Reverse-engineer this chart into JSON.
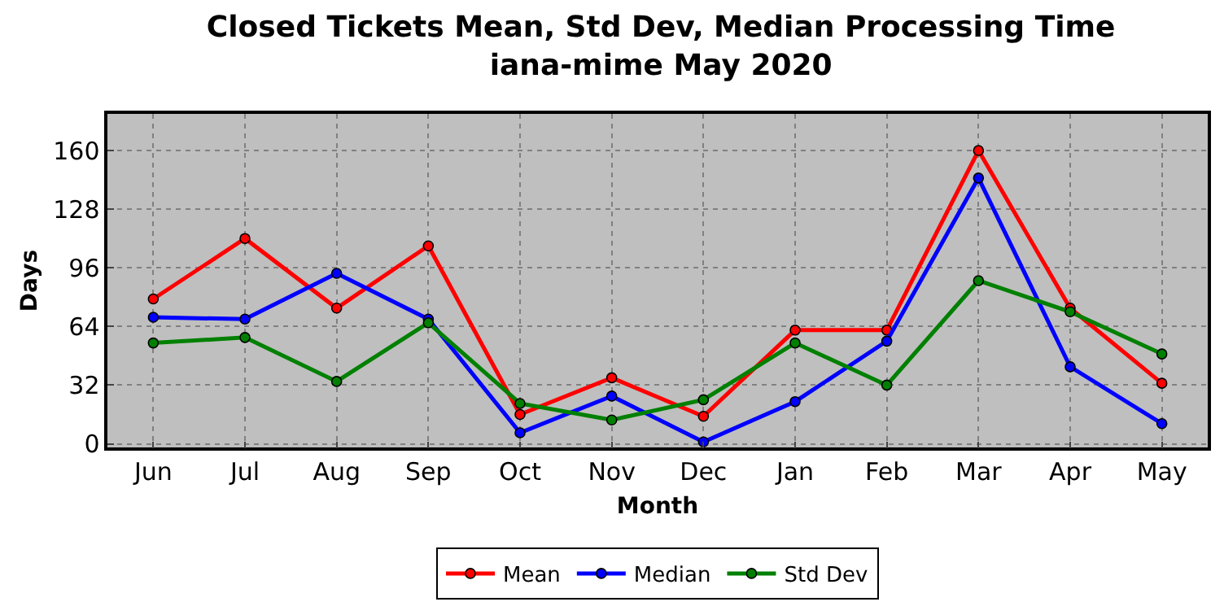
{
  "chart_data": {
    "type": "line",
    "title": "Closed Tickets Mean, Std Dev, Median Processing Time\niana-mime May 2020",
    "xlabel": "Month",
    "ylabel": "Days",
    "categories": [
      "Jun",
      "Jul",
      "Aug",
      "Sep",
      "Oct",
      "Nov",
      "Dec",
      "Jan",
      "Feb",
      "Mar",
      "Apr",
      "May"
    ],
    "series": [
      {
        "name": "Mean",
        "color": "#ff0000",
        "values": [
          79,
          112,
          74,
          108,
          16,
          36,
          15,
          62,
          62,
          160,
          74,
          33
        ]
      },
      {
        "name": "Median",
        "color": "#0000ff",
        "values": [
          69,
          68,
          93,
          68,
          6,
          26,
          1,
          23,
          56,
          145,
          42,
          11
        ]
      },
      {
        "name": "Std Dev",
        "color": "#008000",
        "values": [
          55,
          58,
          34,
          66,
          22,
          13,
          24,
          55,
          32,
          89,
          72,
          49
        ]
      }
    ],
    "ylim": [
      -2,
      180
    ],
    "yticks": [
      0,
      32,
      64,
      96,
      128,
      160
    ],
    "grid": true,
    "legend": "bottom",
    "marker": "circle",
    "line_style": "solid"
  }
}
